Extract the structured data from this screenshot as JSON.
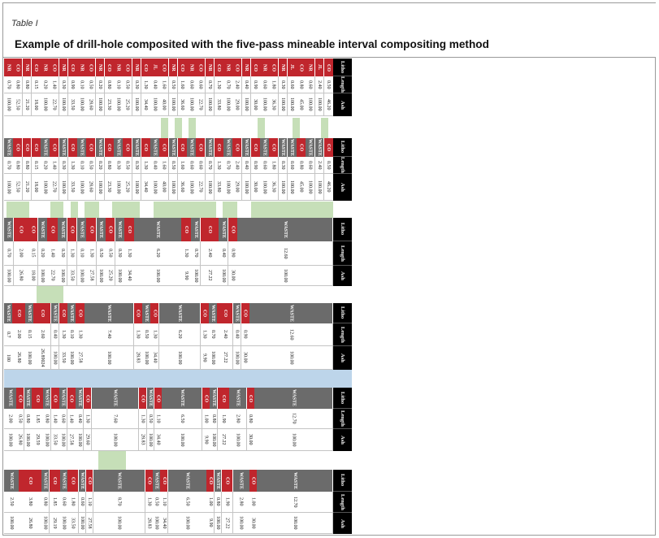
{
  "header": {
    "table_label": "Table I",
    "title": "Example of drill-hole composited with the five-pass mineable interval compositing method"
  },
  "colors": {
    "CO": "#c0262d",
    "NR": "#c0262d",
    "JL": "#c0262d",
    "WASTE": "#6b6b6b",
    "green_highlight": "#c6dfb8",
    "blue_band": "#bdd5ea"
  },
  "column_headers": [
    "Litho",
    "Length",
    "Ash"
  ],
  "bands": [
    {
      "id": "original",
      "rows": [
        [
          "NR",
          "0.70",
          "100.00"
        ],
        [
          "CO",
          "0.80",
          "52.50"
        ],
        [
          "NR",
          "0.80",
          "21.20"
        ],
        [
          "CO",
          "0.15",
          "18.00"
        ],
        [
          "NR",
          "0.20",
          "100.00"
        ],
        [
          "CO",
          "1.40",
          "22.70"
        ],
        [
          "NR",
          "0.30",
          "100.00"
        ],
        [
          "CO",
          "0.90",
          "33.50"
        ],
        [
          "NR",
          "0.10",
          "100.00"
        ],
        [
          "CO",
          "0.50",
          "28.60"
        ],
        [
          "NR",
          "0.20",
          "100.00"
        ],
        [
          "CO",
          "0.80",
          "23.30"
        ],
        [
          "NR",
          "0.10",
          "100.00"
        ],
        [
          "CO",
          "0.50",
          "25.20"
        ],
        [
          "NR",
          "0.30",
          "100.00"
        ],
        [
          "CO",
          "1.30",
          "34.40"
        ],
        [
          "JL",
          "0.40",
          "100.00"
        ],
        [
          "CO",
          "1.60",
          "40.00"
        ],
        [
          "NR",
          "0.50",
          "100.00"
        ],
        [
          "CO",
          "1.60",
          "36.60"
        ],
        [
          "NR",
          "0.60",
          "100.00"
        ],
        [
          "CO",
          "0.60",
          "22.70"
        ],
        [
          "NR",
          "0.70",
          "100.00"
        ],
        [
          "CO",
          "1.30",
          "33.80"
        ],
        [
          "NR",
          "0.70",
          "100.00"
        ],
        [
          "CO",
          "2.40",
          "29.00"
        ],
        [
          "NR",
          "0.40",
          "100.00"
        ],
        [
          "CO",
          "0.90",
          "30.00"
        ],
        [
          "NR",
          "0.60",
          "100.00"
        ],
        [
          "CO",
          "1.80",
          "36.30"
        ],
        [
          "NR",
          "0.30",
          "100.00"
        ],
        [
          "JL",
          "0.60",
          "100.00"
        ],
        [
          "CO",
          "0.80",
          "45.00"
        ],
        [
          "NR",
          "0.60",
          "100.00"
        ],
        [
          "JL",
          "2.40",
          "100.00"
        ],
        [
          "CO",
          "0.50",
          "46.20"
        ]
      ]
    },
    {
      "id": "pass1",
      "rows": [
        [
          "WASTE",
          "0.70",
          "100.00"
        ],
        [
          "CO",
          "0.80",
          "52.50"
        ],
        [
          "CO",
          "0.80",
          "21.20"
        ],
        [
          "CO",
          "0.15",
          "18.00"
        ],
        [
          "WASTE",
          "0.20",
          "100.00"
        ],
        [
          "CO",
          "1.40",
          "22.70"
        ],
        [
          "WASTE",
          "0.30",
          "100.00"
        ],
        [
          "CO",
          "1.30",
          "33.50"
        ],
        [
          "WASTE",
          "0.10",
          "100.00"
        ],
        [
          "CO",
          "0.50",
          "28.60"
        ],
        [
          "WASTE",
          "0.20",
          "100.00"
        ],
        [
          "CO",
          "0.80",
          "23.30"
        ],
        [
          "WASTE",
          "0.30",
          "100.00"
        ],
        [
          "CO",
          "0.50",
          "25.20"
        ],
        [
          "WASTE",
          "0.30",
          "100.00"
        ],
        [
          "CO",
          "1.30",
          "34.40"
        ],
        [
          "WASTE",
          "0.40",
          "100.00"
        ],
        [
          "CO",
          "1.60",
          "40.00"
        ],
        [
          "WASTE",
          "0.50",
          "100.00"
        ],
        [
          "CO",
          "1.60",
          "36.60"
        ],
        [
          "WASTE",
          "0.60",
          "100.00"
        ],
        [
          "CO",
          "0.60",
          "22.70"
        ],
        [
          "WASTE",
          "0.70",
          "100.00"
        ],
        [
          "CO",
          "1.30",
          "33.80"
        ],
        [
          "WASTE",
          "0.70",
          "100.00"
        ],
        [
          "CO",
          "2.40",
          "29.00"
        ],
        [
          "WASTE",
          "0.40",
          "100.00"
        ],
        [
          "CO",
          "0.90",
          "30.00"
        ],
        [
          "WASTE",
          "0.60",
          "100.00"
        ],
        [
          "CO",
          "1.80",
          "36.30"
        ],
        [
          "WASTE",
          "0.30",
          "100.00"
        ],
        [
          "WASTE",
          "0.60",
          "100.00"
        ],
        [
          "CO",
          "0.80",
          "45.00"
        ],
        [
          "WASTE",
          "0.60",
          "100.00"
        ],
        [
          "WASTE",
          "2.40",
          "100.00"
        ],
        [
          "CO",
          "0.50",
          "46.20"
        ]
      ]
    },
    {
      "id": "pass2",
      "rows": [
        [
          "WASTE",
          "0.70",
          "100.00"
        ],
        [
          "CO",
          "2.00",
          "26.80"
        ],
        [
          "CO",
          "0.15",
          "18.00"
        ],
        [
          "WASTE",
          "0.20",
          "100.00"
        ],
        [
          "CO",
          "1.40",
          "22.70"
        ],
        [
          "WASTE",
          "0.30",
          "100.00"
        ],
        [
          "CO",
          "1.30",
          "33.50"
        ],
        [
          "WASTE",
          "0.10",
          "100.00"
        ],
        [
          "CO",
          "1.30",
          "27.58"
        ],
        [
          "WASTE",
          "0.50",
          "100.00"
        ],
        [
          "CO",
          "0.50",
          "25.20"
        ],
        [
          "WASTE",
          "0.30",
          "100.00"
        ],
        [
          "CO",
          "1.30",
          "34.40"
        ],
        [
          "WASTE",
          "6.20",
          "100.00"
        ],
        [
          "CO",
          "1.30",
          "9.90"
        ],
        [
          "WASTE",
          "0.70",
          "100.00"
        ],
        [
          "CO",
          "2.40",
          "27.22"
        ],
        [
          "WASTE",
          "0.40",
          "100.00"
        ],
        [
          "CO",
          "0.90",
          "30.00"
        ],
        [
          "WASTE",
          "12.60",
          "100.00"
        ]
      ]
    },
    {
      "id": "pass3",
      "rows": [
        [
          "WASTE",
          "0.7",
          "100"
        ],
        [
          "CO",
          "2.00",
          "26.80"
        ],
        [
          "WASTE",
          "0.15",
          "100.00"
        ],
        [
          "CO",
          "2.60",
          "26.89024"
        ],
        [
          "WASTE",
          "0.40",
          "100.00"
        ],
        [
          "CO",
          "1.30",
          "33.50"
        ],
        [
          "WASTE",
          "0.10",
          "100.00"
        ],
        [
          "CO",
          "1.30",
          "27.58"
        ],
        [
          "WASTE",
          "7.40",
          "100.00"
        ],
        [
          "CO",
          "1.30",
          "28.83"
        ],
        [
          "WASTE",
          "0.50",
          "100.00"
        ],
        [
          "CO",
          "1.30",
          "34.40"
        ],
        [
          "WASTE",
          "6.20",
          "100.00"
        ],
        [
          "CO",
          "1.30",
          "9.90"
        ],
        [
          "WASTE",
          "0.70",
          "100.00"
        ],
        [
          "CO",
          "2.40",
          "27.22"
        ],
        [
          "WASTE",
          "0.40",
          "100.00"
        ],
        [
          "CO",
          "0.90",
          "30.00"
        ],
        [
          "WASTE",
          "12.60",
          "100.00"
        ]
      ]
    },
    {
      "id": "pass4",
      "rows": [
        [
          "WASTE",
          "2.00",
          "100.00"
        ],
        [
          "CO",
          "0.50",
          "26.80"
        ],
        [
          "WASTE",
          "0.80",
          "100.00"
        ],
        [
          "CO",
          "1.85",
          "29.59"
        ],
        [
          "WASTE",
          "0.80",
          "100.00"
        ],
        [
          "CO",
          "1.40",
          "33.50"
        ],
        [
          "WASTE",
          "0.60",
          "100.00"
        ],
        [
          "CO",
          "1.40",
          "27.58"
        ],
        [
          "WASTE",
          "0.40",
          "100.00"
        ],
        [
          "CO",
          "1.30",
          "29.60"
        ],
        [
          "WASTE",
          "7.60",
          "100.00"
        ],
        [
          "CO",
          "1.30",
          "28.83"
        ],
        [
          "WASTE",
          "0.50",
          "100.00"
        ],
        [
          "CO",
          "1.10",
          "34.40"
        ],
        [
          "WASTE",
          "6.50",
          "100.00"
        ],
        [
          "CO",
          "1.00",
          "9.90"
        ],
        [
          "WASTE",
          "0.80",
          "100.00"
        ],
        [
          "CO",
          "1.90",
          "27.22"
        ],
        [
          "WASTE",
          "2.80",
          "100.00"
        ],
        [
          "CO",
          "0.80",
          "30.00"
        ],
        [
          "WASTE",
          "12.70",
          "100.00"
        ]
      ]
    },
    {
      "id": "pass5",
      "rows": [
        [
          "WASTE",
          "2.50",
          "100.00"
        ],
        [
          "CO",
          "3.80",
          "26.80"
        ],
        [
          "WASTE",
          "0.80",
          "100.00"
        ],
        [
          "CO",
          "1.85",
          "29.19"
        ],
        [
          "WASTE",
          "0.60",
          "100.00"
        ],
        [
          "CO",
          "1.80",
          "33.50"
        ],
        [
          "WASTE",
          "0.60",
          "100.00"
        ],
        [
          "CO",
          "1.10",
          "27.58"
        ],
        [
          "WASTE",
          "8.70",
          "100.00"
        ],
        [
          "CO",
          "1.30",
          "28.83"
        ],
        [
          "WASTE",
          "0.50",
          "100.00"
        ],
        [
          "CO",
          "1.10",
          "34.40"
        ],
        [
          "WASTE",
          "6.50",
          "100.00"
        ],
        [
          "CO",
          "1.00",
          "9.90"
        ],
        [
          "WASTE",
          "0.80",
          "100.00"
        ],
        [
          "CO",
          "1.90",
          "27.22"
        ],
        [
          "WASTE",
          "2.80",
          "100.00"
        ],
        [
          "CO",
          "1.00",
          "30.00"
        ],
        [
          "WASTE",
          "12.70",
          "100.00"
        ]
      ]
    }
  ]
}
